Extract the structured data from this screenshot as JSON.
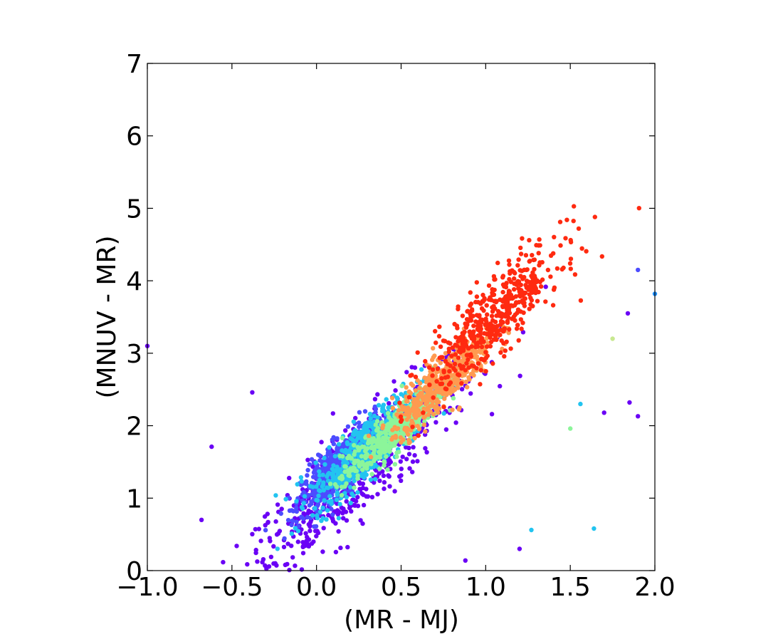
{
  "chart_data": {
    "type": "scatter",
    "title": "",
    "xlabel": "(MR - MJ)",
    "ylabel": "(MNUV - MR)",
    "xlim": [
      -1.0,
      2.0
    ],
    "ylim": [
      0,
      7
    ],
    "x_ticks": [
      -1.0,
      -0.5,
      0.0,
      0.5,
      1.0,
      1.5,
      2.0
    ],
    "x_tick_labels": [
      "−1.0",
      "−0.5",
      "0.0",
      "0.5",
      "1.0",
      "1.5",
      "2.0"
    ],
    "y_ticks": [
      0,
      1,
      2,
      3,
      4,
      5,
      6,
      7
    ],
    "y_tick_labels": [
      "0",
      "1",
      "2",
      "3",
      "4",
      "5",
      "6",
      "7"
    ],
    "grid": false,
    "colormap": "rainbow",
    "colormap_stops": [
      "#6a00f5",
      "#4c4cff",
      "#1e90ff",
      "#22c4f0",
      "#3cf0d0",
      "#8cf59a",
      "#c8e890",
      "#ffb070",
      "#ff8040",
      "#ff2a10"
    ],
    "point_color": "continuous colormap value (no colorbar shown)",
    "groups": [
      {
        "label": "purple outskirts",
        "color": "#6a00f5",
        "center": [
          0.25,
          1.4
        ],
        "spread": [
          0.35,
          0.55
        ],
        "approx_count": 700
      },
      {
        "label": "blue core",
        "color": "#4c4cff",
        "center": [
          0.15,
          1.45
        ],
        "spread": [
          0.12,
          0.3
        ],
        "approx_count": 700
      },
      {
        "label": "cyan core",
        "color": "#22c4f0",
        "center": [
          0.3,
          1.7
        ],
        "spread": [
          0.16,
          0.35
        ],
        "approx_count": 600
      },
      {
        "label": "aqua-green ridge",
        "color": "#8cf59a",
        "center": [
          0.45,
          1.9
        ],
        "spread": [
          0.15,
          0.25
        ],
        "approx_count": 450
      },
      {
        "label": "orange ridge",
        "color": "#ff9a50",
        "center": [
          0.75,
          2.6
        ],
        "spread": [
          0.15,
          0.3
        ],
        "approx_count": 450
      },
      {
        "label": "red tail",
        "color": "#ff2a10",
        "center": [
          1.05,
          3.5
        ],
        "spread": [
          0.2,
          0.45
        ],
        "approx_count": 500
      }
    ],
    "sample_points": [
      {
        "x": 1.48,
        "y": 4.84,
        "color": "#ff2a10"
      },
      {
        "x": 1.55,
        "y": 4.72,
        "color": "#ff2a10"
      },
      {
        "x": 1.9,
        "y": 4.15,
        "color": "#4c4cff"
      },
      {
        "x": 2.0,
        "y": 3.82,
        "color": "#1e90ff"
      },
      {
        "x": 1.84,
        "y": 3.55,
        "color": "#6a00f5"
      },
      {
        "x": 1.75,
        "y": 3.2,
        "color": "#c8e890"
      },
      {
        "x": -1.0,
        "y": 3.1,
        "color": "#6a00f5"
      },
      {
        "x": -0.38,
        "y": 2.46,
        "color": "#6a00f5"
      },
      {
        "x": -0.62,
        "y": 1.71,
        "color": "#6a00f5"
      },
      {
        "x": -0.68,
        "y": 0.7,
        "color": "#6a00f5"
      },
      {
        "x": -0.05,
        "y": 0.34,
        "color": "#6a00f5"
      },
      {
        "x": 0.88,
        "y": 0.14,
        "color": "#6a00f5"
      },
      {
        "x": 1.2,
        "y": 0.3,
        "color": "#6a00f5"
      },
      {
        "x": 1.27,
        "y": 0.56,
        "color": "#22c4f0"
      },
      {
        "x": 1.64,
        "y": 0.58,
        "color": "#22c4f0"
      },
      {
        "x": 1.56,
        "y": 2.3,
        "color": "#22c4f0"
      },
      {
        "x": 1.7,
        "y": 2.18,
        "color": "#6a00f5"
      },
      {
        "x": 1.85,
        "y": 2.32,
        "color": "#6a00f5"
      },
      {
        "x": 1.9,
        "y": 2.13,
        "color": "#6a00f5"
      },
      {
        "x": 1.5,
        "y": 1.96,
        "color": "#8cf59a"
      }
    ]
  }
}
